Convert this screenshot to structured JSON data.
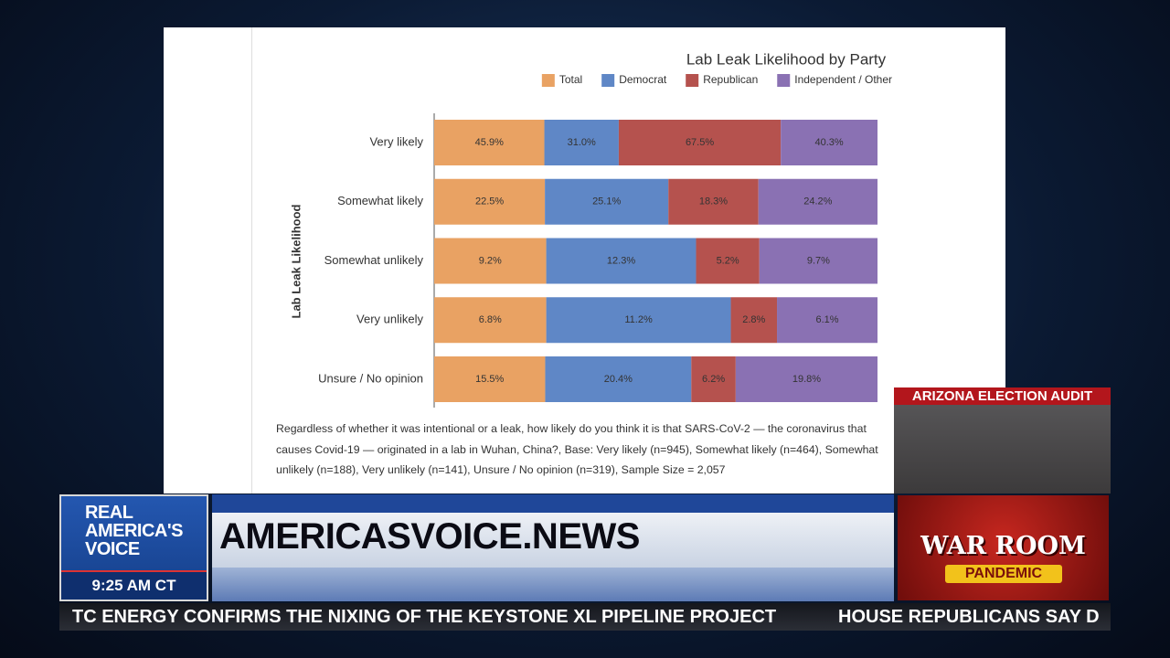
{
  "chart_data": {
    "type": "bar",
    "orientation": "horizontal",
    "stacking": "percent",
    "title": "Lab Leak Likelihood by Party",
    "y_label": "Lab Leak Likelihood",
    "legend": "top-right",
    "categories": [
      "Very likely",
      "Somewhat likely",
      "Somewhat unlikely",
      "Very unlikely",
      "Unsure / No opinion"
    ],
    "series": [
      {
        "name": "Total",
        "color": "#e9a263",
        "values": [
          45.9,
          22.5,
          9.2,
          6.8,
          15.5
        ],
        "value_labels": [
          "45.9%",
          "22.5%",
          "9.2%",
          "6.8%",
          "15.5%"
        ]
      },
      {
        "name": "Democrat",
        "color": "#5f87c6",
        "values": [
          31.0,
          25.1,
          12.3,
          11.2,
          20.4
        ],
        "value_labels": [
          "31.0%",
          "25.1%",
          "12.3%",
          "11.2%",
          "20.4%"
        ]
      },
      {
        "name": "Republican",
        "color": "#b5524e",
        "values": [
          67.5,
          18.3,
          5.2,
          2.8,
          6.2
        ],
        "value_labels": [
          "67.5%",
          "18.3%",
          "5.2%",
          "2.8%",
          "6.2%"
        ]
      },
      {
        "name": "Independent / Other",
        "color": "#8a71b3",
        "values": [
          40.3,
          24.2,
          9.7,
          6.1,
          19.8
        ],
        "value_labels": [
          "40.3%",
          "24.2%",
          "9.7%",
          "6.1%",
          "19.8%"
        ]
      }
    ],
    "caption": "Regardless of whether it was intentional or a leak, how likely do you think it is that SARS-CoV-2 — the coronavirus that causes Covid-19 — originated in a lab in Wuhan, China?, Base: Very likely (n=945), Somewhat likely (n=464), Somewhat unlikely (n=188), Very unlikely (n=141), Unsure / No opinion (n=319), Sample Size = 2,057"
  },
  "broadcast": {
    "logo_lines": [
      "REAL",
      "AMERICA'S",
      "VOICE"
    ],
    "time": "9:25 AM CT",
    "site": "AMERICASVOICE.NEWS",
    "inset_title": "ARIZONA ELECTION AUDIT",
    "show_lines": [
      "WAR ROOM",
      "PANDEMIC"
    ],
    "ticker": [
      "TC ENERGY CONFIRMS THE NIXING OF THE KEYSTONE XL PIPELINE PROJECT",
      "HOUSE REPUBLICANS SAY D"
    ]
  }
}
